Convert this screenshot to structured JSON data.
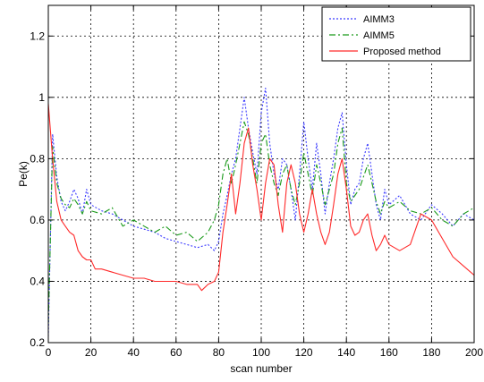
{
  "chart_data": {
    "type": "line",
    "title": "",
    "xlabel": "scan number",
    "ylabel": "Pe(k)",
    "xlim": [
      0,
      200
    ],
    "ylim": [
      0.2,
      1.3
    ],
    "xticks": [
      0,
      20,
      40,
      60,
      80,
      100,
      120,
      140,
      160,
      180,
      200
    ],
    "yticks": [
      0.2,
      0.4,
      0.6,
      0.8,
      1,
      1.2
    ],
    "xtick_labels": [
      "0",
      "20",
      "40",
      "60",
      "80",
      "100",
      "120",
      "140",
      "160",
      "180",
      "200"
    ],
    "ytick_labels": [
      "0.2",
      "0.4",
      "0.6",
      "0.8",
      "1",
      "1.2"
    ],
    "grid": true,
    "legend_position": "top-right",
    "series": [
      {
        "name": "AIMM3",
        "color": "#3b3bff",
        "style": "dotted",
        "x": [
          0,
          2,
          4,
          6,
          8,
          10,
          12,
          14,
          16,
          18,
          20,
          25,
          30,
          35,
          40,
          45,
          50,
          55,
          60,
          65,
          70,
          75,
          78,
          80,
          82,
          84,
          86,
          88,
          90,
          92,
          94,
          96,
          98,
          100,
          102,
          104,
          106,
          108,
          110,
          112,
          114,
          116,
          118,
          120,
          122,
          124,
          126,
          128,
          130,
          132,
          134,
          136,
          138,
          140,
          142,
          144,
          146,
          148,
          150,
          152,
          154,
          156,
          158,
          160,
          165,
          170,
          175,
          180,
          185,
          190,
          195,
          200
        ],
        "y": [
          0.22,
          0.88,
          0.74,
          0.66,
          0.63,
          0.66,
          0.7,
          0.67,
          0.62,
          0.7,
          0.65,
          0.63,
          0.62,
          0.6,
          0.58,
          0.57,
          0.56,
          0.54,
          0.53,
          0.52,
          0.51,
          0.52,
          0.5,
          0.53,
          0.62,
          0.68,
          0.75,
          0.8,
          0.9,
          1.0,
          0.9,
          0.82,
          0.75,
          0.95,
          1.03,
          0.85,
          0.75,
          0.7,
          0.8,
          0.78,
          0.7,
          0.6,
          0.75,
          0.92,
          0.8,
          0.7,
          0.85,
          0.75,
          0.62,
          0.72,
          0.8,
          0.9,
          0.95,
          0.78,
          0.65,
          0.7,
          0.72,
          0.8,
          0.85,
          0.75,
          0.65,
          0.6,
          0.7,
          0.65,
          0.68,
          0.62,
          0.6,
          0.65,
          0.62,
          0.58,
          0.62,
          0.6
        ]
      },
      {
        "name": "AIMM5",
        "color": "#1a9a1a",
        "style": "dashdot",
        "x": [
          0,
          2,
          4,
          6,
          8,
          10,
          12,
          14,
          16,
          18,
          20,
          25,
          30,
          35,
          40,
          45,
          50,
          55,
          60,
          65,
          70,
          75,
          78,
          80,
          82,
          84,
          86,
          88,
          90,
          92,
          94,
          96,
          98,
          100,
          102,
          104,
          106,
          108,
          110,
          112,
          114,
          116,
          118,
          120,
          122,
          124,
          126,
          128,
          130,
          132,
          134,
          136,
          138,
          140,
          142,
          144,
          146,
          148,
          150,
          152,
          154,
          156,
          158,
          160,
          165,
          170,
          175,
          180,
          185,
          190,
          195,
          200
        ],
        "y": [
          0.26,
          0.84,
          0.72,
          0.67,
          0.65,
          0.64,
          0.67,
          0.65,
          0.62,
          0.66,
          0.63,
          0.62,
          0.64,
          0.58,
          0.6,
          0.58,
          0.56,
          0.58,
          0.55,
          0.56,
          0.53,
          0.56,
          0.6,
          0.65,
          0.75,
          0.8,
          0.72,
          0.78,
          0.85,
          0.92,
          0.88,
          0.8,
          0.72,
          0.85,
          0.88,
          0.78,
          0.72,
          0.68,
          0.75,
          0.78,
          0.7,
          0.65,
          0.72,
          0.82,
          0.75,
          0.68,
          0.78,
          0.72,
          0.65,
          0.7,
          0.75,
          0.85,
          0.9,
          0.72,
          0.66,
          0.68,
          0.7,
          0.74,
          0.78,
          0.72,
          0.66,
          0.62,
          0.66,
          0.64,
          0.66,
          0.63,
          0.62,
          0.64,
          0.6,
          0.58,
          0.62,
          0.64
        ]
      },
      {
        "name": "Proposed method",
        "color": "#ff2a2a",
        "style": "solid",
        "x": [
          0,
          2,
          4,
          6,
          8,
          10,
          12,
          14,
          16,
          18,
          20,
          22,
          25,
          30,
          35,
          40,
          45,
          50,
          55,
          60,
          65,
          70,
          72,
          75,
          78,
          80,
          82,
          84,
          86,
          88,
          90,
          92,
          94,
          96,
          98,
          100,
          102,
          104,
          106,
          108,
          110,
          112,
          114,
          116,
          118,
          120,
          122,
          124,
          126,
          128,
          130,
          132,
          134,
          136,
          138,
          140,
          142,
          144,
          146,
          148,
          150,
          152,
          154,
          156,
          158,
          160,
          165,
          170,
          175,
          180,
          185,
          190,
          195,
          200
        ],
        "y": [
          0.98,
          0.8,
          0.66,
          0.6,
          0.58,
          0.56,
          0.55,
          0.5,
          0.48,
          0.47,
          0.47,
          0.44,
          0.44,
          0.43,
          0.42,
          0.41,
          0.41,
          0.4,
          0.4,
          0.4,
          0.39,
          0.39,
          0.37,
          0.39,
          0.4,
          0.43,
          0.56,
          0.65,
          0.75,
          0.62,
          0.72,
          0.85,
          0.9,
          0.78,
          0.7,
          0.6,
          0.72,
          0.8,
          0.78,
          0.65,
          0.56,
          0.72,
          0.78,
          0.72,
          0.62,
          0.56,
          0.62,
          0.7,
          0.62,
          0.56,
          0.52,
          0.56,
          0.65,
          0.75,
          0.8,
          0.7,
          0.58,
          0.55,
          0.56,
          0.6,
          0.62,
          0.55,
          0.5,
          0.52,
          0.55,
          0.52,
          0.5,
          0.52,
          0.62,
          0.6,
          0.54,
          0.48,
          0.45,
          0.42
        ]
      }
    ]
  }
}
